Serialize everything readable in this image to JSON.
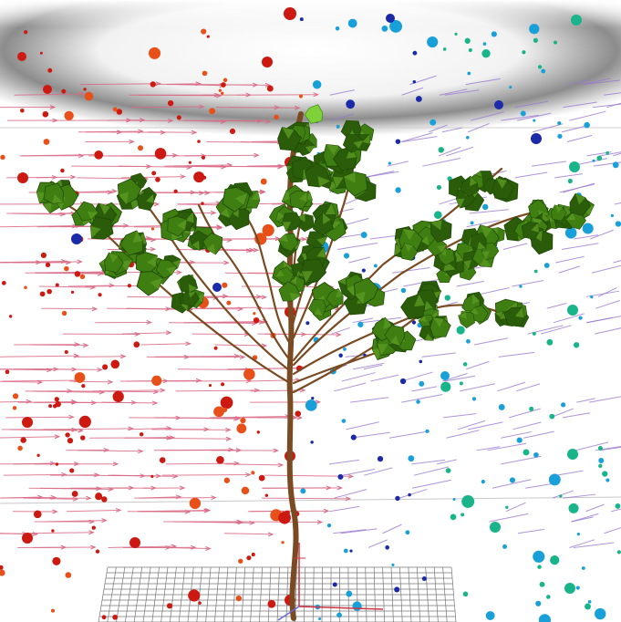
{
  "scene": {
    "subject": "plant",
    "colors": {
      "background": "#ffffff",
      "sky_band": "#888888",
      "trunk": "#7a4a22",
      "leaf": "#3f7f12",
      "leaf_dark": "#2a5c0a",
      "leaf_highlight": "#7fd13a",
      "wind_arrow_left": "#d96b86",
      "wind_arrow_right": "#9a7ad0",
      "particle_red": "#cc1a12",
      "particle_orange": "#e8501a",
      "particle_blue": "#1a2aa8",
      "particle_cyan": "#1aa0d8",
      "particle_teal": "#1ab48a",
      "ground_grid": "#777777"
    }
  }
}
